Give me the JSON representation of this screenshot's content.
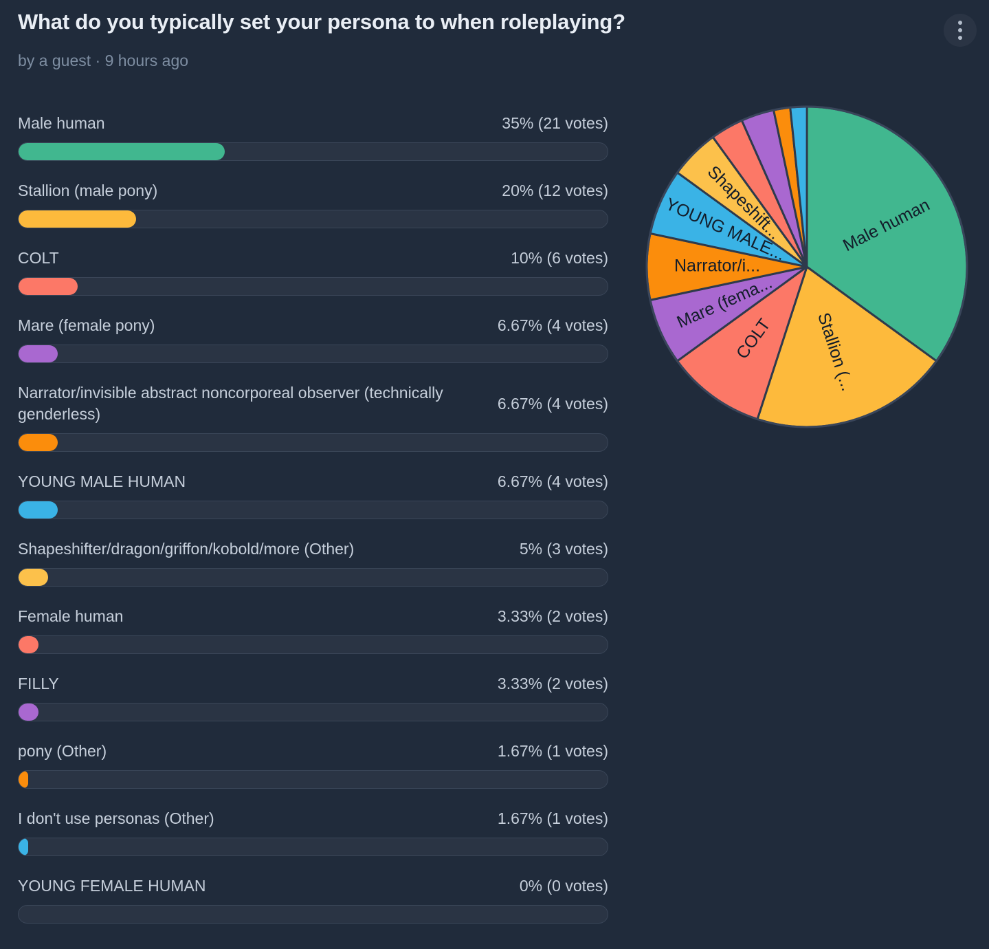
{
  "header": {
    "title": "What do you typically set your persona to when roleplaying?",
    "byline": "by a guest · 9 hours ago"
  },
  "theme": {
    "background": "#202b3b",
    "track_color": "#2a3444",
    "track_border": "#3a4658",
    "title_color": "#e9eef5",
    "label_color": "#c6cfdb",
    "byline_color": "#7e8ea2",
    "pie_stroke": "#2e3a4c",
    "pie_rim": "#39455a",
    "pie_label_color": "#131d2a"
  },
  "poll": {
    "options": [
      {
        "label": "Male human",
        "percent": 35,
        "result_text": "35% (21 votes)",
        "color": "#41b78f"
      },
      {
        "label": "Stallion (male pony)",
        "percent": 20,
        "result_text": "20% (12 votes)",
        "color": "#fdba3c"
      },
      {
        "label": "COLT",
        "percent": 10,
        "result_text": "10% (6 votes)",
        "color": "#fc7867"
      },
      {
        "label": "Mare (female pony)",
        "percent": 6.67,
        "result_text": "6.67% (4 votes)",
        "color": "#a968d0"
      },
      {
        "label": "Narrator/invisible abstract noncorporeal observer (technically genderless)",
        "percent": 6.67,
        "result_text": "6.67% (4 votes)",
        "color": "#fb8d0c"
      },
      {
        "label": "YOUNG MALE HUMAN",
        "percent": 6.67,
        "result_text": "6.67% (4 votes)",
        "color": "#3ab3e6"
      },
      {
        "label": "Shapeshifter/dragon/griffon/kobold/more (Other)",
        "percent": 5,
        "result_text": "5% (3 votes)",
        "color": "#fcc14b"
      },
      {
        "label": "Female human",
        "percent": 3.33,
        "result_text": "3.33% (2 votes)",
        "color": "#fc7867"
      },
      {
        "label": "FILLY",
        "percent": 3.33,
        "result_text": "3.33% (2 votes)",
        "color": "#a968d0"
      },
      {
        "label": "pony (Other)",
        "percent": 1.67,
        "result_text": "1.67% (1 votes)",
        "color": "#fb8d0c"
      },
      {
        "label": "I don't use personas (Other)",
        "percent": 1.67,
        "result_text": "1.67% (1 votes)",
        "color": "#3ab3e6"
      },
      {
        "label": "YOUNG FEMALE HUMAN",
        "percent": 0,
        "result_text": "0% (0 votes)",
        "color": "#41b78f"
      }
    ]
  },
  "chart_data": {
    "type": "pie",
    "title": "What do you typically set your persona to when roleplaying?",
    "categories": [
      "Male human",
      "Stallion (male pony)",
      "COLT",
      "Mare (female pony)",
      "Narrator/invisible abstract noncorporeal observer (technically genderless)",
      "YOUNG MALE HUMAN",
      "Shapeshifter/dragon/griffon/kobold/more (Other)",
      "Female human",
      "FILLY",
      "pony (Other)",
      "I don't use personas (Other)",
      "YOUNG FEMALE HUMAN"
    ],
    "values": [
      35,
      20,
      10,
      6.67,
      6.67,
      6.67,
      5,
      3.33,
      3.33,
      1.67,
      1.67,
      0
    ],
    "votes": [
      21,
      12,
      6,
      4,
      4,
      4,
      3,
      2,
      2,
      1,
      1,
      0
    ],
    "colors": [
      "#41b78f",
      "#fdba3c",
      "#fc7867",
      "#a968d0",
      "#fb8d0c",
      "#3ab3e6",
      "#fcc14b",
      "#fc7867",
      "#a968d0",
      "#fb8d0c",
      "#3ab3e6",
      "#41b78f"
    ],
    "slice_labels": [
      "Male human",
      "Stallion (...",
      "COLT",
      "Mare (fema...",
      "Narrator/i...",
      "YOUNG MALE...",
      "Shapeshift...",
      "",
      "",
      "",
      "",
      ""
    ],
    "start_angle_deg": 0,
    "direction": "clockwise",
    "legend": "none",
    "grid": false
  }
}
